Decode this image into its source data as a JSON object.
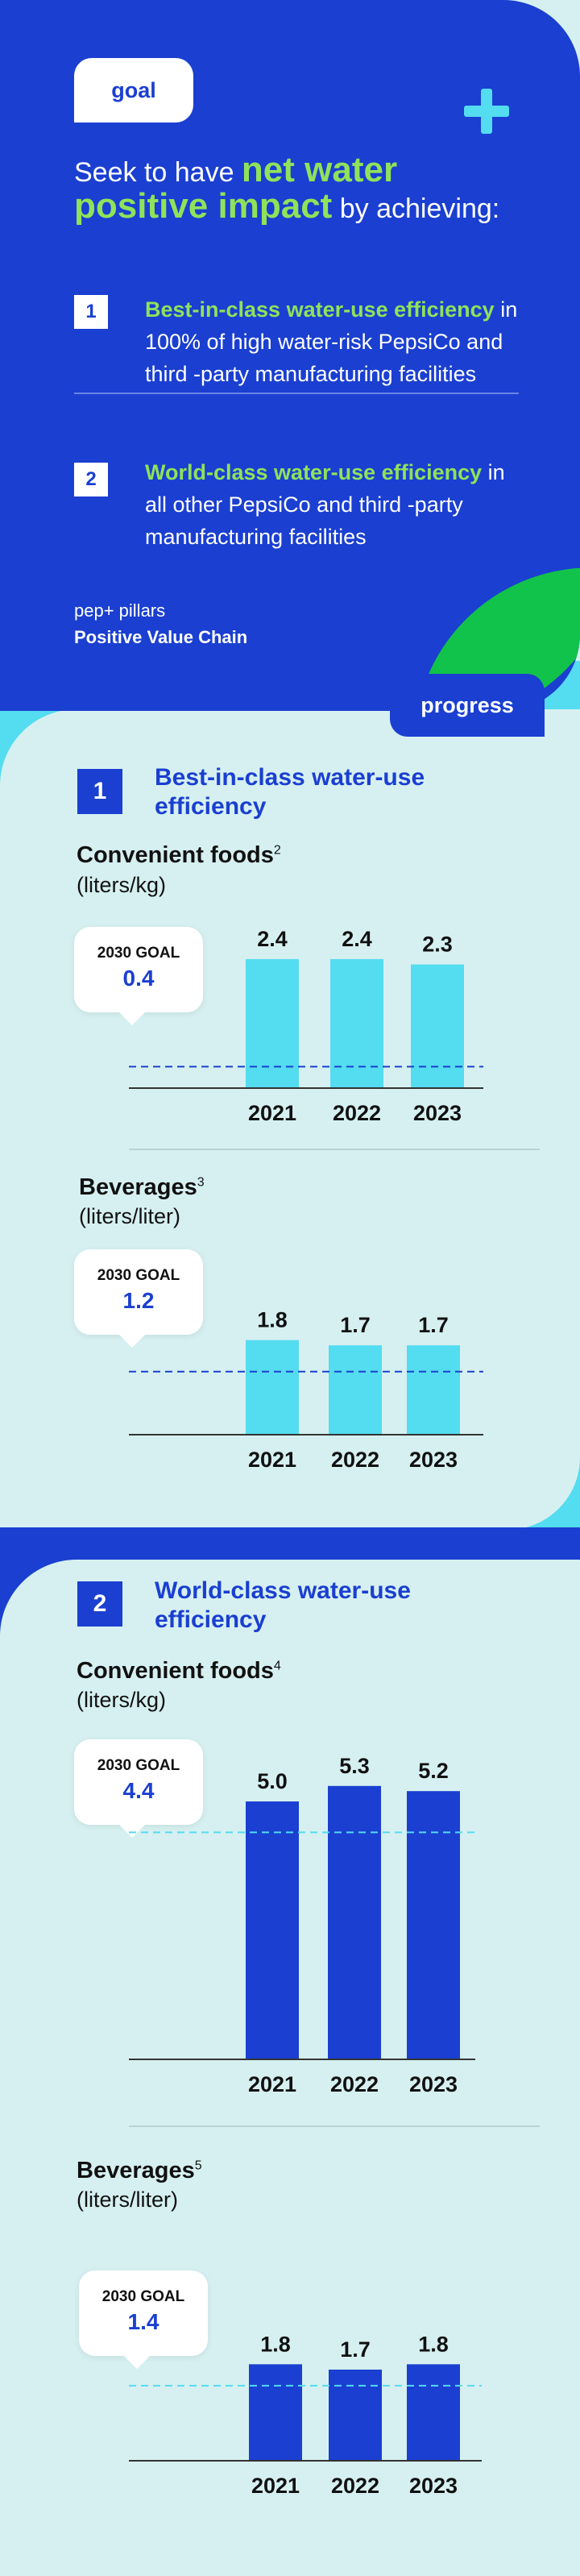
{
  "colors": {
    "blue": "#1a3fd1",
    "cyan": "#54dcf0",
    "green": "#8fe25a",
    "leaf": "#12c34b",
    "bg": "#d6f0f1"
  },
  "icons": {
    "plus": "plus-icon",
    "leaf": "leaf-shape"
  },
  "goal": {
    "tag": "goal",
    "headline_pre": "Seek to have ",
    "headline_hl": "net water positive impact",
    "headline_post": " by achieving:",
    "items": [
      {
        "num": "1",
        "highlight": "Best-in-class water-use efficiency",
        "rest": " in 100% of high water-risk PepsiCo and third -party manufacturing facilities"
      },
      {
        "num": "2",
        "highlight": "World-class water-use efficiency",
        "rest": " in all other PepsiCo and third -party manufacturing facilities"
      }
    ],
    "pillar_label": "pep+ pillars",
    "pillar_name": "Positive Value Chain"
  },
  "progress_tag": "progress",
  "sections": [
    {
      "num": "1",
      "title": "Best-in-class water-use efficiency"
    },
    {
      "num": "2",
      "title": "World-class water-use efficiency"
    }
  ],
  "chart_data": [
    {
      "type": "bar",
      "title": "Convenient foods",
      "footnote": "2",
      "unit": "(liters/kg)",
      "categories": [
        "2021",
        "2022",
        "2023"
      ],
      "values": [
        2.4,
        2.4,
        2.3
      ],
      "value_labels": [
        "2.4",
        "2.4",
        "2.3"
      ],
      "goal_label": "2030 GOAL",
      "goal": 0.4,
      "goal_text": "0.4",
      "color": "#54dcf0",
      "goal_line_color": "#1a3fd1"
    },
    {
      "type": "bar",
      "title": "Beverages",
      "footnote": "3",
      "unit": "(liters/liter)",
      "categories": [
        "2021",
        "2022",
        "2023"
      ],
      "values": [
        1.8,
        1.7,
        1.7
      ],
      "value_labels": [
        "1.8",
        "1.7",
        "1.7"
      ],
      "goal_label": "2030 GOAL",
      "goal": 1.2,
      "goal_text": "1.2",
      "color": "#54dcf0",
      "goal_line_color": "#1a3fd1"
    },
    {
      "type": "bar",
      "title": "Convenient foods",
      "footnote": "4",
      "unit": "(liters/kg)",
      "categories": [
        "2021",
        "2022",
        "2023"
      ],
      "values": [
        5.0,
        5.3,
        5.2
      ],
      "value_labels": [
        "5.0",
        "5.3",
        "5.2"
      ],
      "goal_label": "2030 GOAL",
      "goal": 4.4,
      "goal_text": "4.4",
      "color": "#1a3fd1",
      "goal_line_color": "#54dcf0"
    },
    {
      "type": "bar",
      "title": "Beverages",
      "footnote": "5",
      "unit": "(liters/liter)",
      "categories": [
        "2021",
        "2022",
        "2023"
      ],
      "values": [
        1.8,
        1.7,
        1.8
      ],
      "value_labels": [
        "1.8",
        "1.7",
        "1.8"
      ],
      "goal_label": "2030 GOAL",
      "goal": 1.4,
      "goal_text": "1.4",
      "color": "#1a3fd1",
      "goal_line_color": "#54dcf0"
    }
  ]
}
